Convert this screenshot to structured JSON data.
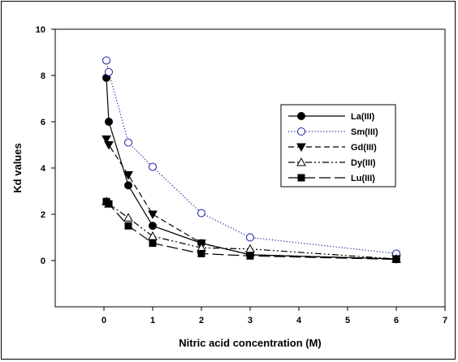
{
  "chart_data": {
    "type": "line",
    "title": "",
    "xlabel": "Nitric acid concentration (M)",
    "ylabel": "Kd values",
    "xlim": [
      -1,
      7
    ],
    "ylim": [
      -2,
      10
    ],
    "x_ticks": [
      0,
      1,
      2,
      3,
      4,
      5,
      6,
      7
    ],
    "y_ticks": [
      0,
      2,
      4,
      6,
      8,
      10
    ],
    "grid": false,
    "legend_position": "right",
    "series": [
      {
        "name": "La(III)",
        "marker": "filled-circle",
        "line": "solid",
        "color": "#000000",
        "x": [
          0.05,
          0.1,
          0.5,
          1,
          2,
          3,
          6
        ],
        "y": [
          7.9,
          6.0,
          3.25,
          1.5,
          0.75,
          0.25,
          0.07
        ]
      },
      {
        "name": "Sm(III)",
        "marker": "open-circle",
        "line": "dotted",
        "color": "#1a1aa6",
        "x": [
          0.05,
          0.1,
          0.5,
          1,
          2,
          3,
          6
        ],
        "y": [
          8.65,
          8.15,
          5.1,
          4.05,
          2.05,
          1.0,
          0.3
        ]
      },
      {
        "name": "Gd(III)",
        "marker": "filled-triangle-down",
        "line": "dashed",
        "color": "#000000",
        "x": [
          0.05,
          0.1,
          0.5,
          1,
          2,
          3,
          6
        ],
        "y": [
          5.25,
          5.0,
          3.7,
          2.0,
          0.75,
          0.25,
          0.07
        ]
      },
      {
        "name": "Dy(III)",
        "marker": "open-triangle-up",
        "line": "dash-dot-dot",
        "color": "#000000",
        "x": [
          0.05,
          0.1,
          0.5,
          1,
          2,
          3,
          6
        ],
        "y": [
          2.55,
          2.45,
          1.85,
          1.05,
          0.55,
          0.5,
          0.07
        ]
      },
      {
        "name": "Lu(III)",
        "marker": "filled-square",
        "line": "long-dash",
        "color": "#000000",
        "x": [
          0.05,
          0.1,
          0.5,
          1,
          2,
          3,
          6
        ],
        "y": [
          2.55,
          2.45,
          1.5,
          0.75,
          0.3,
          0.2,
          0.05
        ]
      }
    ]
  }
}
